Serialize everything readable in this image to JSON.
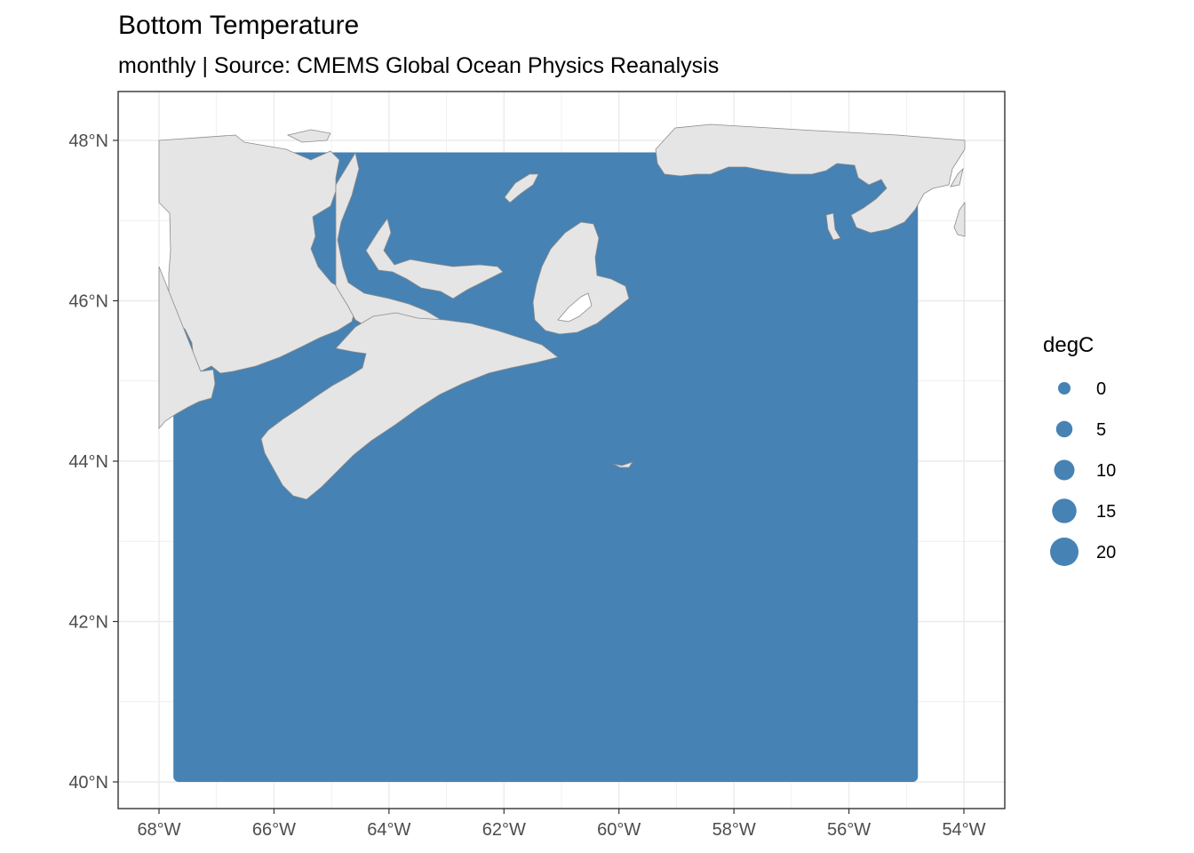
{
  "title": "Bottom Temperature",
  "subtitle": "monthly | Source: CMEMS Global Ocean Physics Reanalysis",
  "colors": {
    "ocean_points": "#4682b4",
    "land": "#e5e5e5",
    "land_border": "#8c8c8c",
    "grid": "#ebebeb",
    "panel_border": "#333333",
    "background": "#ffffff"
  },
  "chart_data": {
    "type": "map",
    "xlim": [
      -68,
      -54
    ],
    "ylim": [
      40,
      48
    ],
    "x_ticks": [
      {
        "value": -68,
        "label": "68°W"
      },
      {
        "value": -66,
        "label": "66°W"
      },
      {
        "value": -64,
        "label": "64°W"
      },
      {
        "value": -62,
        "label": "62°W"
      },
      {
        "value": -60,
        "label": "60°W"
      },
      {
        "value": -58,
        "label": "58°W"
      },
      {
        "value": -56,
        "label": "56°W"
      },
      {
        "value": -54,
        "label": "54°W"
      }
    ],
    "y_ticks": [
      {
        "value": 48,
        "label": "48°N"
      },
      {
        "value": 46,
        "label": "46°N"
      },
      {
        "value": 44,
        "label": "44°N"
      },
      {
        "value": 42,
        "label": "42°N"
      },
      {
        "value": 40,
        "label": "40°N"
      }
    ],
    "data_extent": {
      "lon": [
        -67.75,
        -54.8
      ],
      "lat": [
        40.0,
        47.85
      ]
    },
    "grid": true,
    "legend": {
      "title": "degC",
      "position": "right",
      "entries": [
        {
          "label": "0",
          "value": 0
        },
        {
          "label": "5",
          "value": 5
        },
        {
          "label": "10",
          "value": 10
        },
        {
          "label": "15",
          "value": 15
        },
        {
          "label": "20",
          "value": 20
        }
      ]
    }
  }
}
